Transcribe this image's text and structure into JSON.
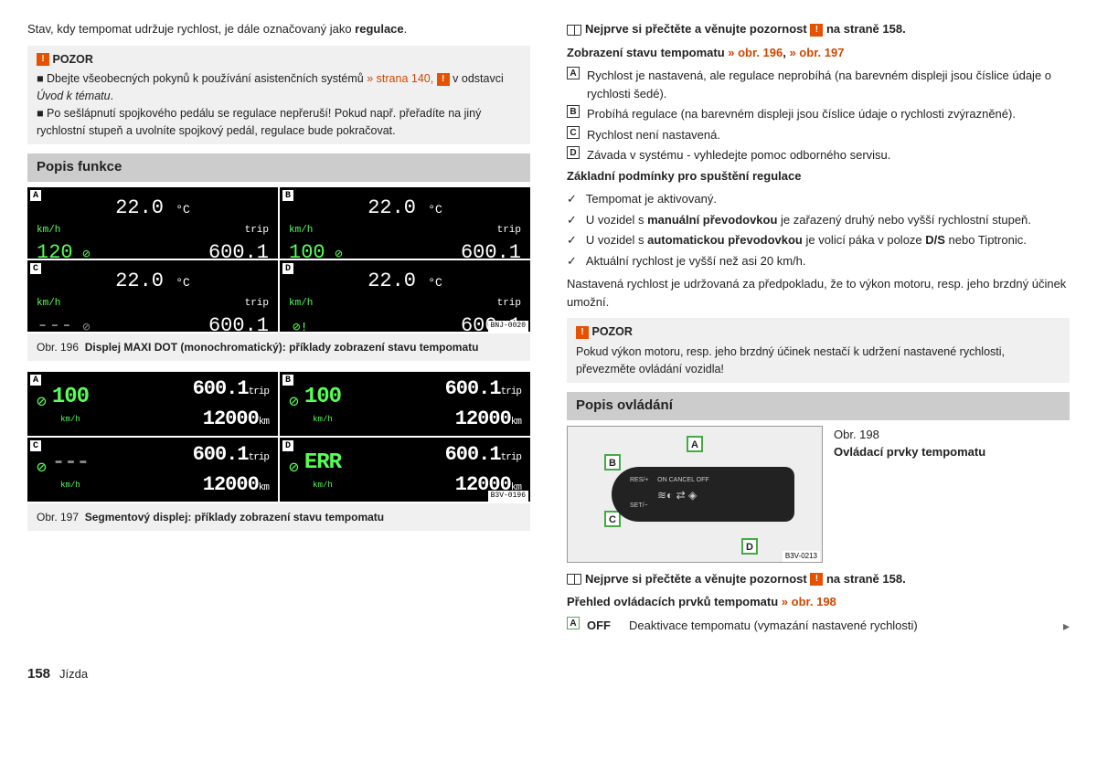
{
  "intro": {
    "text": "Stav, kdy tempomat udržuje rychlost, je dále označovaný jako ",
    "bold": "regulace",
    "end": "."
  },
  "pozor1": {
    "title": "POZOR",
    "b1a": "Dbejte všeobecných pokynů k používání asistenčních systémů ",
    "b1link": "» strana 140, ",
    "b1b": " v odstavci ",
    "b1i": "Úvod k tématu",
    "b2": "Po sešlápnutí spojkového pedálu se regulace nepřeruší! Pokud např. přeřadíte na jiný rychlostní stupeň a uvolníte spojkový pedál, regulace bude pokračovat."
  },
  "sec1": "Popis funkce",
  "g1": [
    {
      "l": "A",
      "temp": "22.0",
      "speed": "120",
      "trip": "600.1",
      "speedClass": "",
      "iconClass": ""
    },
    {
      "l": "B",
      "temp": "22.0",
      "speed": "100",
      "trip": "600.1",
      "speedClass": "",
      "iconClass": ""
    },
    {
      "l": "C",
      "temp": "22.0",
      "speed": "---",
      "trip": "600.1",
      "speedClass": "gray",
      "iconClass": "gray"
    },
    {
      "l": "D",
      "temp": "22.0",
      "speed": "",
      "trip": "600.1",
      "speedClass": "",
      "iconClass": "warn",
      "iconSuffix": "!"
    }
  ],
  "cap1": {
    "pre": "Obr. 196",
    "txt": "Displej MAXI DOT (monochromatický): příklady zobrazení stavu tempomatu"
  },
  "code1": "BNJ-0020",
  "g2": [
    {
      "l": "A",
      "speed": "100",
      "trip": "600.1",
      "odo": "12000"
    },
    {
      "l": "B",
      "speed": "100",
      "trip": "600.1",
      "odo": "12000"
    },
    {
      "l": "C",
      "speed": "---",
      "trip": "600.1",
      "odo": "12000",
      "speedClass": "gray"
    },
    {
      "l": "D",
      "speed": "ERR",
      "trip": "600.1",
      "odo": "12000",
      "speedClass": "err"
    }
  ],
  "cap2": {
    "pre": "Obr. 197",
    "txt": "Segmentový displej: příklady zobrazení stavu tempomatu"
  },
  "code2": "B3V-0196",
  "read": {
    "a": "Nejprve si přečtěte a věnujte pozornost ",
    "b": " na straně 158."
  },
  "status": {
    "title": "Zobrazení stavu tempomatu ",
    "link1": "» obr. 196",
    "sep": ", ",
    "link2": "» obr. 197",
    "items": [
      {
        "l": "A",
        "t": "Rychlost je nastavená, ale regulace neprobíhá (na barevném displeji jsou číslice údaje o rychlosti šedé)."
      },
      {
        "l": "B",
        "t": "Probíhá regulace (na barevném displeji jsou číslice údaje o rychlosti zvýrazněné)."
      },
      {
        "l": "C",
        "t": "Rychlost není nastavená."
      },
      {
        "l": "D",
        "t": "Závada v systému - vyhledejte pomoc odborného servisu."
      }
    ]
  },
  "cond": {
    "title": "Základní podmínky pro spuštění regulace",
    "c1": "Tempomat je aktivovaný.",
    "c2a": "U vozidel s ",
    "c2b": "manuální převodovkou",
    "c2c": " je zařazený druhý nebo vyšší rychlostní stupeň.",
    "c3a": "U vozidel s ",
    "c3b": "automatickou převodovkou",
    "c3c": " je volicí páka v poloze ",
    "c3d": "D/S",
    "c3e": " nebo Tiptronic.",
    "c4": "Aktuální rychlost je vyšší než asi 20 km/h."
  },
  "note": "Nastavená rychlost je udržovaná za předpokladu, že to výkon motoru, resp. jeho brzdný účinek umožní.",
  "pozor2": {
    "title": "POZOR",
    "txt": "Pokud výkon motoru, resp. jeho brzdný účinek nestačí k udržení nastavené rychlosti, převezměte ovládání vozidla!"
  },
  "sec2": "Popis ovládání",
  "fig198": {
    "pre": "Obr. 198",
    "txt": "Ovládací prvky tempomatu",
    "code": "B3V-0213"
  },
  "overview": {
    "title": "Přehled ovládacích prvků tempomatu ",
    "link": "» obr. 198"
  },
  "ctrlA": {
    "l": "A",
    "key": "OFF",
    "txt": "Deaktivace tempomatu (vymazání nastavené rychlosti)"
  },
  "footer": {
    "page": "158",
    "chap": "Jízda"
  }
}
